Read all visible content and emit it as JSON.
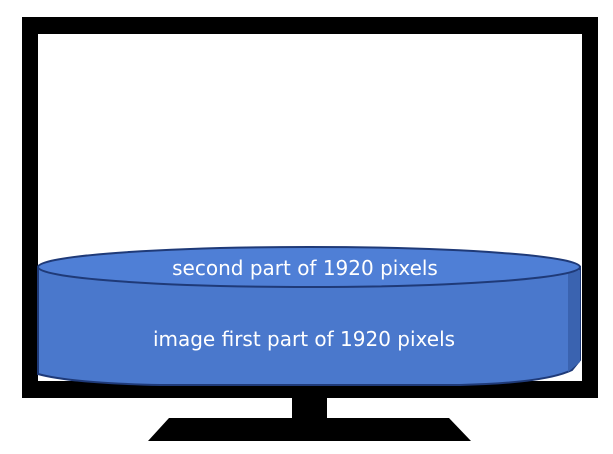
{
  "diagram": {
    "cylinder_top_label": "second part of 1920 pixels",
    "cylinder_body_label": "image first part of 1920 pixels"
  },
  "colors": {
    "monitor_frame": "#000000",
    "screen": "#ffffff",
    "cylinder_fill": "#4a78cc",
    "cylinder_top_fill": "#4f7fd6",
    "cylinder_outline": "#1f3a78",
    "label_text": "#ffffff"
  }
}
